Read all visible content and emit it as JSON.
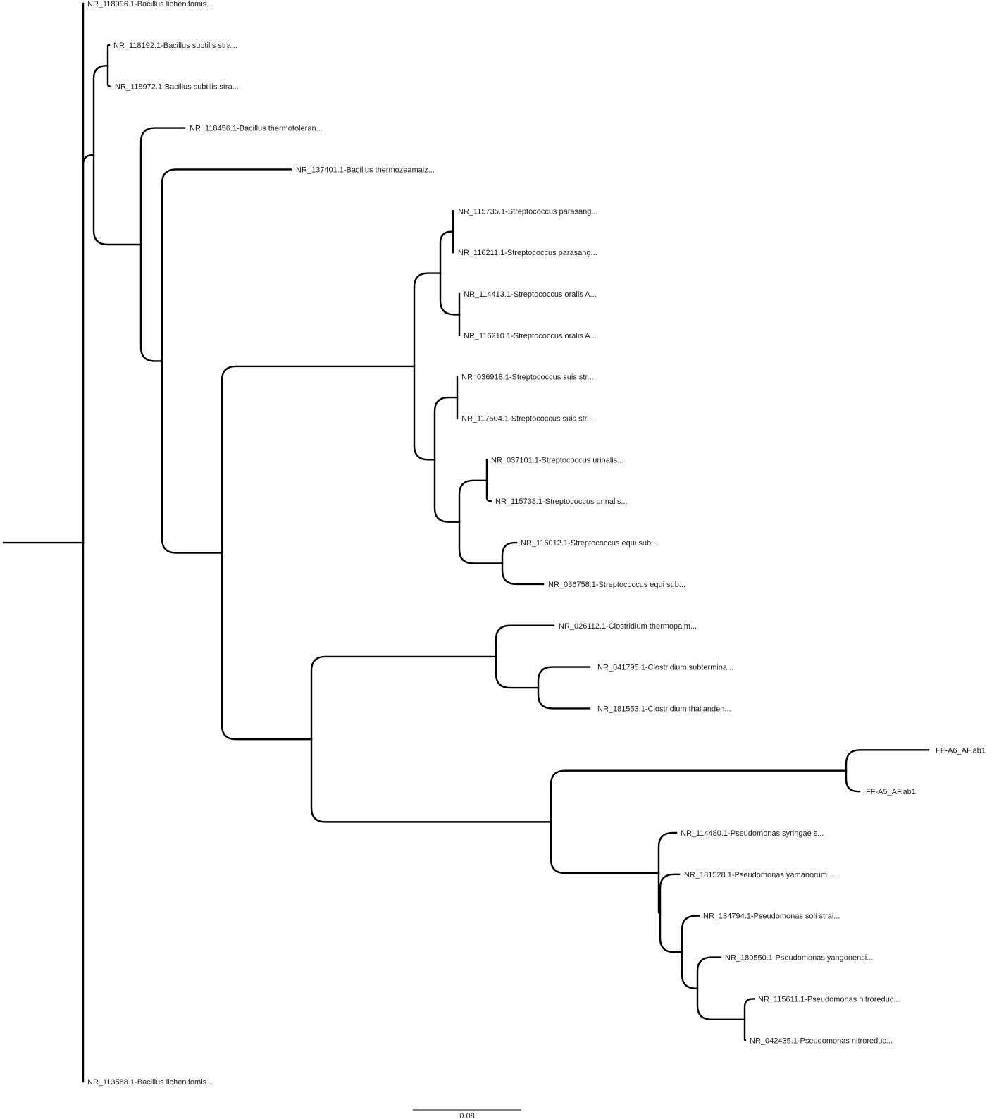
{
  "tree": {
    "leaves": [
      "NR_118996.1-Bacillus lichenifomis...",
      "NR_118192.1-Bacillus subtilis stra...",
      "NR_118972.1-Bacillus subtilis stra...",
      "NR_118456.1-Bacillus thermotoleran...",
      "NR_137401.1-Bacillus thermozeamaiz...",
      "NR_115735.1-Streptococcus parasang...",
      "NR_116211.1-Streptococcus parasang...",
      "NR_114413.1-Streptococcus oralis A...",
      "NR_116210.1-Streptococcus oralis A...",
      "NR_036918.1-Streptococcus suis str...",
      "NR_117504.1-Streptococcus suis str...",
      "NR_037101.1-Streptococcus urinalis...",
      "NR_115738.1-Streptococcus urinalis...",
      "NR_116012.1-Streptococcus equi sub...",
      "NR_036758.1-Streptococcus equi sub...",
      "NR_026112.1-Clostridium thermopalm...",
      "NR_041795.1-Clostridium subtermina...",
      "NR_181553.1-Clostridium thailanden...",
      "FF-A6_AF.ab1",
      "FF-A5_AF.ab1",
      "NR_114480.1-Pseudomonas syringae s...",
      "NR_181528.1-Pseudomonas yamanorum ...",
      "NR_134794.1-Pseudomonas soli strai...",
      "NR_180550.1-Pseudomonas yangonensi...",
      "NR_115611.1-Pseudomonas nitroreduc...",
      "NR_042435.1-Pseudomonas nitroreduc...",
      "NR_113588.1-Bacillus lichenifomis..."
    ]
  },
  "scale_bar": {
    "label": "0.08"
  },
  "colors": {
    "branch": "#000000",
    "text": "#1a1a1a"
  }
}
